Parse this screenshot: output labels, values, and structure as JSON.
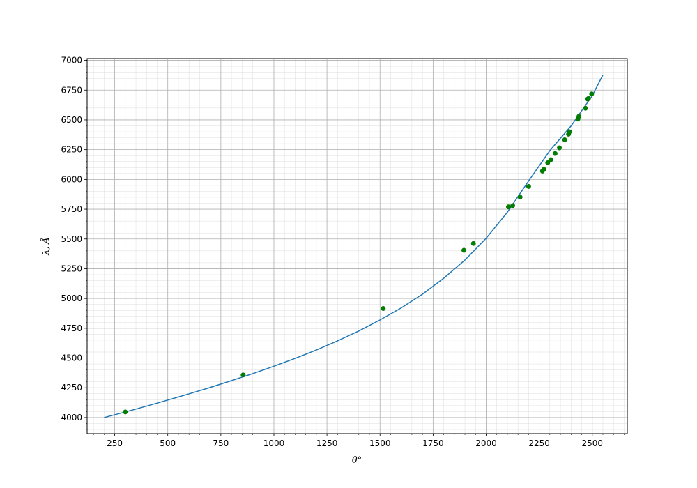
{
  "chart_data": {
    "type": "scatter",
    "xlabel": "θ°",
    "ylabel": "λ, Å",
    "xlim": [
      120,
      2665
    ],
    "ylim": [
      3865,
      7015
    ],
    "xticks": [
      250,
      500,
      750,
      1000,
      1250,
      1500,
      1750,
      2000,
      2250,
      2500
    ],
    "yticks": [
      4000,
      4250,
      4500,
      4750,
      5000,
      5250,
      5500,
      5750,
      6000,
      6250,
      6500,
      6750,
      7000
    ],
    "x_minor_step": 50,
    "y_minor_step": 50,
    "grid": true,
    "colors": {
      "curve": "#1f77b4",
      "points": "#008000",
      "grid_major": "#b0b0b0",
      "grid_minor": "#dddddd"
    },
    "fit_curve": {
      "name": "",
      "x": [
        200,
        300,
        400,
        500,
        600,
        700,
        800,
        900,
        1000,
        1100,
        1200,
        1300,
        1400,
        1500,
        1600,
        1700,
        1800,
        1900,
        2000,
        2100,
        2200,
        2300,
        2400,
        2500,
        2550
      ],
      "y": [
        4000,
        4047,
        4096,
        4147,
        4199,
        4253,
        4310,
        4369,
        4431,
        4497,
        4567,
        4644,
        4727,
        4820,
        4921,
        5036,
        5170,
        5323,
        5506,
        5725,
        5987,
        6242,
        6449,
        6704,
        6877
      ]
    },
    "points": [
      {
        "x": 300,
        "y": 4047
      },
      {
        "x": 855,
        "y": 4358
      },
      {
        "x": 1515,
        "y": 4916
      },
      {
        "x": 1895,
        "y": 5405
      },
      {
        "x": 1940,
        "y": 5462
      },
      {
        "x": 2105,
        "y": 5770
      },
      {
        "x": 2125,
        "y": 5780
      },
      {
        "x": 2160,
        "y": 5852
      },
      {
        "x": 2200,
        "y": 5941
      },
      {
        "x": 2265,
        "y": 6070
      },
      {
        "x": 2272,
        "y": 6085
      },
      {
        "x": 2290,
        "y": 6140
      },
      {
        "x": 2305,
        "y": 6166
      },
      {
        "x": 2325,
        "y": 6218
      },
      {
        "x": 2345,
        "y": 6265
      },
      {
        "x": 2370,
        "y": 6333
      },
      {
        "x": 2388,
        "y": 6380
      },
      {
        "x": 2393,
        "y": 6400
      },
      {
        "x": 2432,
        "y": 6507
      },
      {
        "x": 2437,
        "y": 6530
      },
      {
        "x": 2468,
        "y": 6598
      },
      {
        "x": 2478,
        "y": 6675
      },
      {
        "x": 2482,
        "y": 6680
      },
      {
        "x": 2497,
        "y": 6718
      }
    ]
  }
}
